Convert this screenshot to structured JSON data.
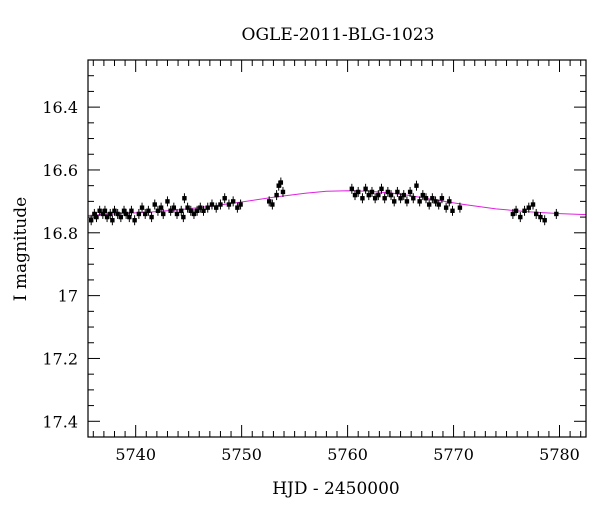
{
  "chart_data": {
    "type": "scatter",
    "title": "OGLE-2011-BLG-1023",
    "xlabel": "HJD - 2450000",
    "ylabel": "I magnitude",
    "xlim": [
      5735.5,
      5782.5
    ],
    "ylim": [
      17.45,
      16.25
    ],
    "y_inverted": true,
    "x_ticks": [
      5740,
      5750,
      5760,
      5770,
      5780
    ],
    "x_tick_labels": [
      "5740",
      "5750",
      "5760",
      "5770",
      "5780"
    ],
    "y_ticks": [
      16.4,
      16.6,
      16.8,
      17.0,
      17.2,
      17.4
    ],
    "y_tick_labels": [
      "16.4",
      "16.6",
      "16.8",
      "17",
      "17.2",
      "17.4"
    ],
    "grid": false,
    "colors": {
      "points": "#000000",
      "model": "#e020e0"
    },
    "series": [
      {
        "kind": "points",
        "x": [
          5735.8,
          5736.1,
          5736.3,
          5736.6,
          5736.9,
          5737.1,
          5737.3,
          5737.6,
          5737.8,
          5738.0,
          5738.3,
          5738.6,
          5738.9,
          5739.1,
          5739.4,
          5739.6,
          5739.9,
          5740.3,
          5740.6,
          5740.9,
          5741.2,
          5741.5,
          5741.8,
          5742.1,
          5742.4,
          5742.6,
          5743.0,
          5743.3,
          5743.6,
          5743.9,
          5744.3,
          5744.5,
          5744.6,
          5744.9,
          5745.2,
          5745.5,
          5745.8,
          5746.1,
          5746.4,
          5746.8,
          5747.2,
          5747.6,
          5748.0,
          5748.4,
          5748.8,
          5749.2,
          5749.6,
          5749.9,
          5752.6,
          5752.9,
          5753.3,
          5753.5,
          5753.7,
          5753.9,
          5760.4,
          5760.7,
          5761.0,
          5761.4,
          5761.7,
          5762.0,
          5762.3,
          5762.6,
          5762.9,
          5763.2,
          5763.5,
          5763.8,
          5764.1,
          5764.4,
          5764.7,
          5765.0,
          5765.3,
          5765.6,
          5765.9,
          5766.2,
          5766.5,
          5766.8,
          5767.1,
          5767.4,
          5767.7,
          5768.0,
          5768.3,
          5768.6,
          5768.9,
          5769.3,
          5769.6,
          5769.9,
          5770.6,
          5775.6,
          5775.9,
          5776.3,
          5776.7,
          5777.1,
          5777.5,
          5777.8,
          5778.2,
          5778.6,
          5779.7
        ],
        "y": [
          16.76,
          16.74,
          16.75,
          16.73,
          16.74,
          16.73,
          16.75,
          16.74,
          16.76,
          16.73,
          16.74,
          16.75,
          16.73,
          16.74,
          16.75,
          16.73,
          16.76,
          16.74,
          16.72,
          16.74,
          16.73,
          16.75,
          16.71,
          16.73,
          16.72,
          16.74,
          16.7,
          16.73,
          16.72,
          16.74,
          16.73,
          16.75,
          16.69,
          16.72,
          16.73,
          16.74,
          16.73,
          16.72,
          16.73,
          16.72,
          16.71,
          16.72,
          16.71,
          16.69,
          16.71,
          16.7,
          16.72,
          16.71,
          16.7,
          16.71,
          16.68,
          16.65,
          16.64,
          16.67,
          16.66,
          16.68,
          16.67,
          16.69,
          16.66,
          16.68,
          16.67,
          16.69,
          16.68,
          16.66,
          16.69,
          16.67,
          16.68,
          16.7,
          16.67,
          16.69,
          16.68,
          16.7,
          16.67,
          16.69,
          16.65,
          16.7,
          16.68,
          16.69,
          16.71,
          16.69,
          16.7,
          16.71,
          16.69,
          16.72,
          16.7,
          16.73,
          16.72,
          16.74,
          16.73,
          16.75,
          16.73,
          16.72,
          16.71,
          16.74,
          16.75,
          16.76,
          16.74
        ]
      },
      {
        "kind": "model",
        "x": [
          5735.5,
          5738,
          5741,
          5744,
          5747,
          5750,
          5753,
          5756,
          5758,
          5760,
          5762,
          5764,
          5766,
          5768,
          5771,
          5774,
          5777,
          5780,
          5782.5
        ],
        "y": [
          16.745,
          16.74,
          16.735,
          16.727,
          16.716,
          16.702,
          16.687,
          16.674,
          16.668,
          16.666,
          16.668,
          16.673,
          16.682,
          16.694,
          16.71,
          16.724,
          16.733,
          16.739,
          16.742
        ]
      }
    ]
  }
}
